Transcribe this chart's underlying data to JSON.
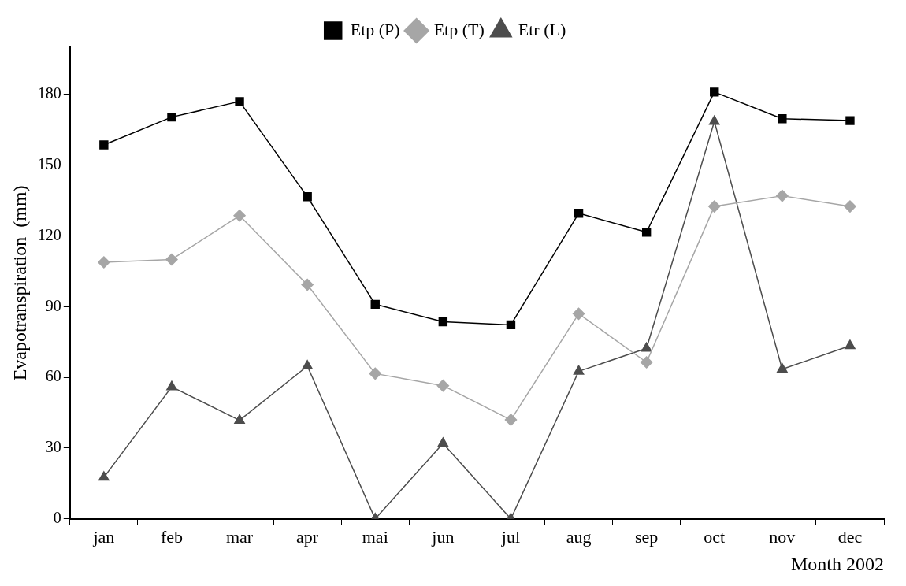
{
  "chart_data": {
    "type": "line",
    "xlabel": "Month 2002",
    "ylabel": "Evapotranspiration  (mm)",
    "categories": [
      "jan",
      "feb",
      "mar",
      "apr",
      "mai",
      "jun",
      "jul",
      "aug",
      "sep",
      "oct",
      "nov",
      "dec"
    ],
    "series": [
      {
        "name": "Etp (P)",
        "color": "#000000",
        "marker": "square",
        "values": [
          158.6,
          170.4,
          177,
          136.6,
          91,
          83.6,
          82.3,
          129.6,
          121.6,
          181,
          169.7,
          168.9
        ]
      },
      {
        "name": "Etp (T)",
        "color": "#a6a6a6",
        "marker": "diamond",
        "values": [
          108.8,
          110,
          128.6,
          99.3,
          61.6,
          56.5,
          42,
          87,
          66.4,
          132.5,
          137,
          132.5
        ]
      },
      {
        "name": "Etr (L)",
        "color": "#4d4d4d",
        "marker": "triangle",
        "values": [
          17.6,
          56,
          41.8,
          64.8,
          0,
          32,
          0,
          62.6,
          72.3,
          168.5,
          63.5,
          73.4
        ]
      }
    ],
    "ylim": [
      0,
      200
    ],
    "yticks": [
      0,
      30,
      60,
      90,
      120,
      150,
      180
    ],
    "grid": false,
    "legend": "top",
    "line_style": "solid"
  }
}
